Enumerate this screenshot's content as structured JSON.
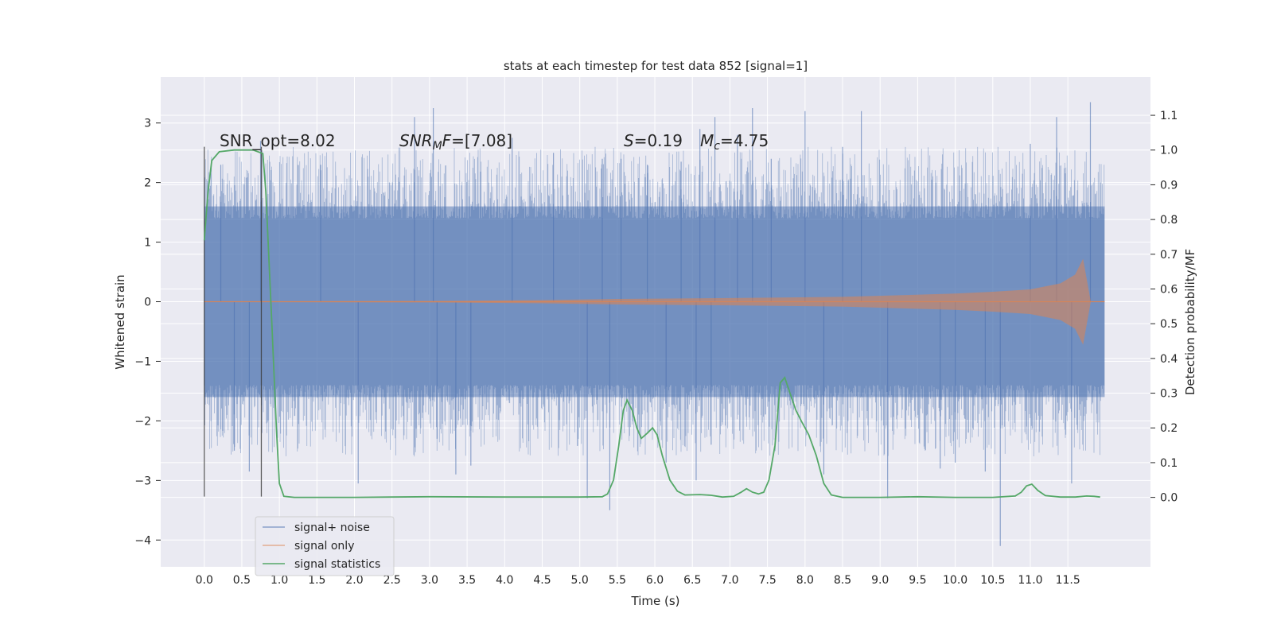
{
  "chart_data": {
    "type": "line",
    "title": "stats at each timestep for test data 852 [signal=1]",
    "xlabel": "Time (s)",
    "ylabel_left": "Whitened strain",
    "ylabel_right": "Detection probability/MF",
    "xlim": [
      -0.58,
      12.6
    ],
    "ylim_left": [
      -4.45,
      3.77
    ],
    "ylim_right": [
      -0.2,
      1.21
    ],
    "grid": true,
    "xticks": [
      0.0,
      0.5,
      1.0,
      1.5,
      2.0,
      2.5,
      3.0,
      3.5,
      4.0,
      4.5,
      5.0,
      5.5,
      6.0,
      6.5,
      7.0,
      7.5,
      8.0,
      8.5,
      9.0,
      9.5,
      10.0,
      10.5,
      11.0,
      11.5
    ],
    "xtick_labels": [
      "0.0",
      "0.5",
      "1.0",
      "1.5",
      "2.0",
      "2.5",
      "3.0",
      "3.5",
      "4.0",
      "4.5",
      "5.0",
      "5.5",
      "6.0",
      "6.5",
      "7.0",
      "7.5",
      "8.0",
      "8.5",
      "9.0",
      "9.5",
      "10.0",
      "10.5",
      "11.0",
      "11.5"
    ],
    "yticks_left": [
      -4,
      -3,
      -2,
      -1,
      0,
      1,
      2,
      3
    ],
    "ytick_labels_left": [
      "−4",
      "−3",
      "−2",
      "−1",
      "0",
      "1",
      "2",
      "3"
    ],
    "yticks_right": [
      0.0,
      0.1,
      0.2,
      0.3,
      0.4,
      0.5,
      0.6,
      0.7,
      0.8,
      0.9,
      1.0,
      1.1
    ],
    "ytick_labels_right": [
      "0.0",
      "0.1",
      "0.2",
      "0.3",
      "0.4",
      "0.5",
      "0.6",
      "0.7",
      "0.8",
      "0.9",
      "1.0",
      "1.1"
    ],
    "annotations": {
      "snr_opt": "SNR_opt=8.02",
      "snr_mf_main": "SNR",
      "snr_mf_sub": "M",
      "snr_mf_rest": "F=[7.08]",
      "s_sym": "S",
      "s_val": "=0.19",
      "mc_sym": "M",
      "mc_sub": "c",
      "mc_val": "=4.75"
    },
    "vertical_lines_x": [
      0.0,
      0.76
    ],
    "vertical_lines_yrange": [
      -3.27,
      2.6
    ],
    "legend_position": "lower-left",
    "series": [
      {
        "name": "signal+ noise",
        "color": "#4c72b0",
        "kind": "noise-band",
        "x_range": [
          0.0,
          11.99
        ],
        "envelope_y": [
          -1.6,
          1.6
        ],
        "peaks_y": [
          [
            0.22,
            2.3
          ],
          [
            0.4,
            -2.5
          ],
          [
            0.6,
            -2.85
          ],
          [
            0.75,
            2.7
          ],
          [
            1.55,
            2.3
          ],
          [
            2.05,
            -3.05
          ],
          [
            2.8,
            3.1
          ],
          [
            3.05,
            3.25
          ],
          [
            3.1,
            -2.3
          ],
          [
            3.35,
            -2.9
          ],
          [
            3.55,
            -2.75
          ],
          [
            4.1,
            2.75
          ],
          [
            4.65,
            2.5
          ],
          [
            5.1,
            -3.3
          ],
          [
            5.3,
            2.4
          ],
          [
            5.4,
            -3.5
          ],
          [
            5.55,
            2.4
          ],
          [
            5.9,
            2.3
          ],
          [
            6.15,
            -2.7
          ],
          [
            6.35,
            2.35
          ],
          [
            6.55,
            -3.0
          ],
          [
            6.6,
            2.9
          ],
          [
            6.75,
            -2.4
          ],
          [
            6.8,
            3.1
          ],
          [
            7.1,
            2.8
          ],
          [
            7.3,
            3.25
          ],
          [
            7.55,
            2.4
          ],
          [
            8.0,
            3.2
          ],
          [
            8.25,
            -2.9
          ],
          [
            8.5,
            2.6
          ],
          [
            8.75,
            3.2
          ],
          [
            9.1,
            -3.3
          ],
          [
            9.8,
            -2.8
          ],
          [
            10.0,
            -2.7
          ],
          [
            10.4,
            -2.85
          ],
          [
            10.6,
            -4.1
          ],
          [
            11.0,
            2.65
          ],
          [
            11.35,
            3.1
          ],
          [
            11.55,
            -3.05
          ],
          [
            11.8,
            3.35
          ]
        ]
      },
      {
        "name": "signal only",
        "color": "#dd8452",
        "kind": "chirp",
        "x_range": [
          0.0,
          11.99
        ],
        "amplitude_y": [
          [
            0.0,
            0.0
          ],
          [
            3.0,
            0.005
          ],
          [
            4.5,
            0.02
          ],
          [
            5.5,
            0.04
          ],
          [
            7.0,
            0.055
          ],
          [
            8.5,
            0.075
          ],
          [
            10.0,
            0.13
          ],
          [
            10.5,
            0.16
          ],
          [
            11.0,
            0.2
          ],
          [
            11.4,
            0.3
          ],
          [
            11.6,
            0.45
          ],
          [
            11.7,
            0.7
          ],
          [
            11.75,
            0.35
          ],
          [
            11.8,
            0.0
          ],
          [
            11.99,
            0.0
          ]
        ]
      },
      {
        "name": "signal statistics",
        "color": "#55a868",
        "kind": "line",
        "axis": "right",
        "points": [
          [
            0.0,
            0.74
          ],
          [
            0.05,
            0.88
          ],
          [
            0.1,
            0.97
          ],
          [
            0.2,
            0.995
          ],
          [
            0.4,
            1.0
          ],
          [
            0.65,
            1.0
          ],
          [
            0.78,
            0.99
          ],
          [
            0.82,
            0.88
          ],
          [
            0.9,
            0.5
          ],
          [
            0.96,
            0.2
          ],
          [
            1.0,
            0.04
          ],
          [
            1.06,
            0.003
          ],
          [
            1.2,
            0.0
          ],
          [
            2.0,
            0.0
          ],
          [
            2.5,
            0.001
          ],
          [
            3.0,
            0.002
          ],
          [
            4.0,
            0.001
          ],
          [
            5.0,
            0.001
          ],
          [
            5.3,
            0.002
          ],
          [
            5.37,
            0.01
          ],
          [
            5.45,
            0.05
          ],
          [
            5.52,
            0.15
          ],
          [
            5.58,
            0.25
          ],
          [
            5.63,
            0.28
          ],
          [
            5.7,
            0.25
          ],
          [
            5.76,
            0.2
          ],
          [
            5.82,
            0.17
          ],
          [
            5.9,
            0.185
          ],
          [
            5.97,
            0.2
          ],
          [
            6.03,
            0.18
          ],
          [
            6.1,
            0.12
          ],
          [
            6.2,
            0.05
          ],
          [
            6.3,
            0.018
          ],
          [
            6.4,
            0.007
          ],
          [
            6.6,
            0.008
          ],
          [
            6.75,
            0.006
          ],
          [
            6.9,
            0.001
          ],
          [
            7.05,
            0.003
          ],
          [
            7.15,
            0.015
          ],
          [
            7.22,
            0.025
          ],
          [
            7.3,
            0.015
          ],
          [
            7.38,
            0.01
          ],
          [
            7.45,
            0.015
          ],
          [
            7.52,
            0.05
          ],
          [
            7.6,
            0.15
          ],
          [
            7.67,
            0.33
          ],
          [
            7.73,
            0.345
          ],
          [
            7.8,
            0.3
          ],
          [
            7.88,
            0.25
          ],
          [
            7.95,
            0.22
          ],
          [
            8.05,
            0.18
          ],
          [
            8.15,
            0.12
          ],
          [
            8.25,
            0.04
          ],
          [
            8.35,
            0.007
          ],
          [
            8.5,
            0.0
          ],
          [
            9.0,
            0.0
          ],
          [
            9.5,
            0.002
          ],
          [
            10.0,
            0.0
          ],
          [
            10.5,
            0.0
          ],
          [
            10.8,
            0.004
          ],
          [
            10.88,
            0.015
          ],
          [
            10.95,
            0.033
          ],
          [
            11.02,
            0.038
          ],
          [
            11.1,
            0.02
          ],
          [
            11.2,
            0.005
          ],
          [
            11.4,
            0.001
          ],
          [
            11.6,
            0.001
          ],
          [
            11.75,
            0.004
          ],
          [
            11.85,
            0.003
          ],
          [
            11.93,
            0.001
          ]
        ]
      }
    ]
  }
}
